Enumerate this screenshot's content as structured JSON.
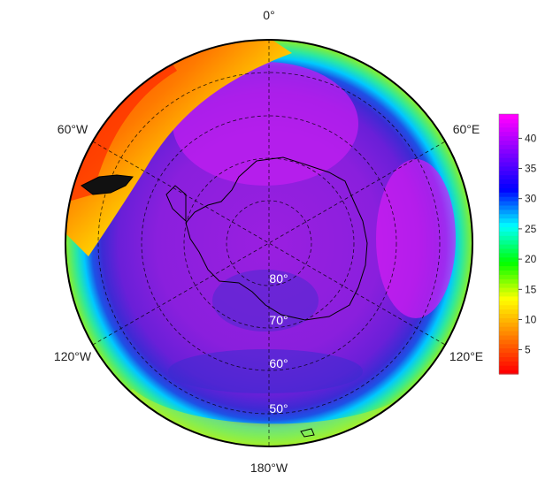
{
  "map": {
    "projection": "south-polar-stereographic",
    "longitude_labels": [
      "0°",
      "60°E",
      "120°E",
      "180°W",
      "120°W",
      "60°W"
    ],
    "latitude_labels": [
      "80°",
      "70°",
      "60°",
      "50°"
    ],
    "grid": true
  },
  "colorbar": {
    "min": 1,
    "max": 44,
    "ticks": [
      5,
      10,
      15,
      20,
      25,
      30,
      35,
      40
    ],
    "colors": [
      "#ff0000",
      "#ff8000",
      "#ffff00",
      "#00ff00",
      "#00ffff",
      "#0000ff",
      "#8000ff",
      "#ff00ff"
    ]
  },
  "colors": {
    "interior": "#8a2be2",
    "outline": "#000000"
  }
}
